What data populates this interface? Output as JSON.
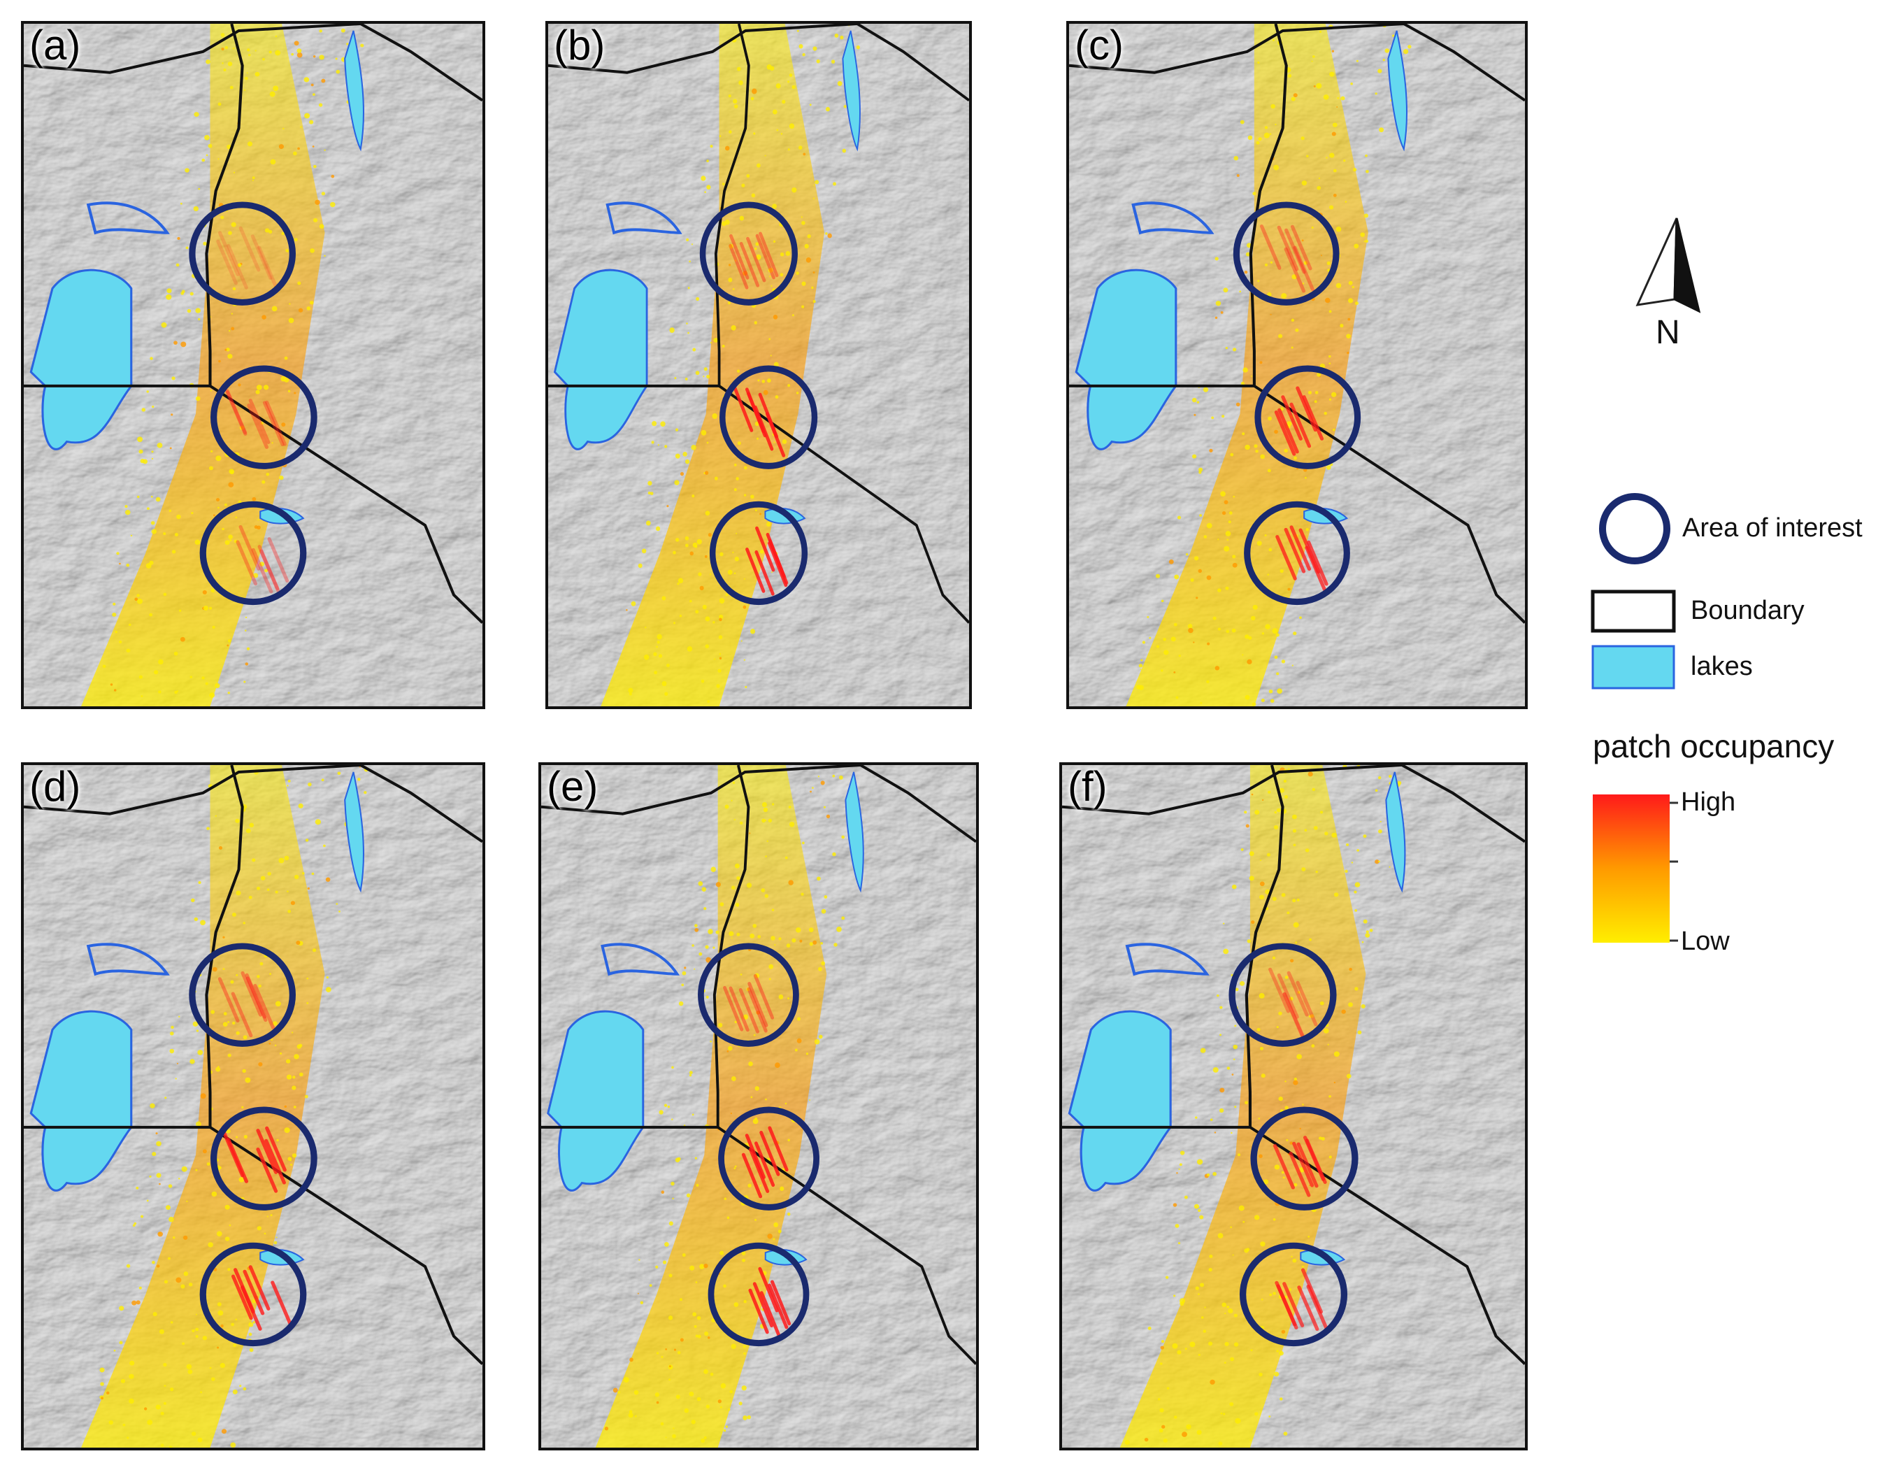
{
  "panels": [
    {
      "label": "(a)"
    },
    {
      "label": "(b)"
    },
    {
      "label": "(c)"
    },
    {
      "label": "(d)"
    },
    {
      "label": "(e)"
    },
    {
      "label": "(f)"
    }
  ],
  "north_arrow": {
    "label": "N"
  },
  "legend": {
    "area_of_interest": "Area of interest",
    "boundary": "Boundary",
    "lakes": "lakes",
    "scale_title": "patch occupancy",
    "scale_high": "High",
    "scale_low": "Low"
  },
  "colors": {
    "lake": "#64d8f0",
    "lake_outline": "#2a64e0",
    "circle": "#1a2a6e",
    "high": "#ff1a1a",
    "mid": "#ff9a00",
    "low": "#ffee00",
    "terrain": "#9a9a9a"
  }
}
